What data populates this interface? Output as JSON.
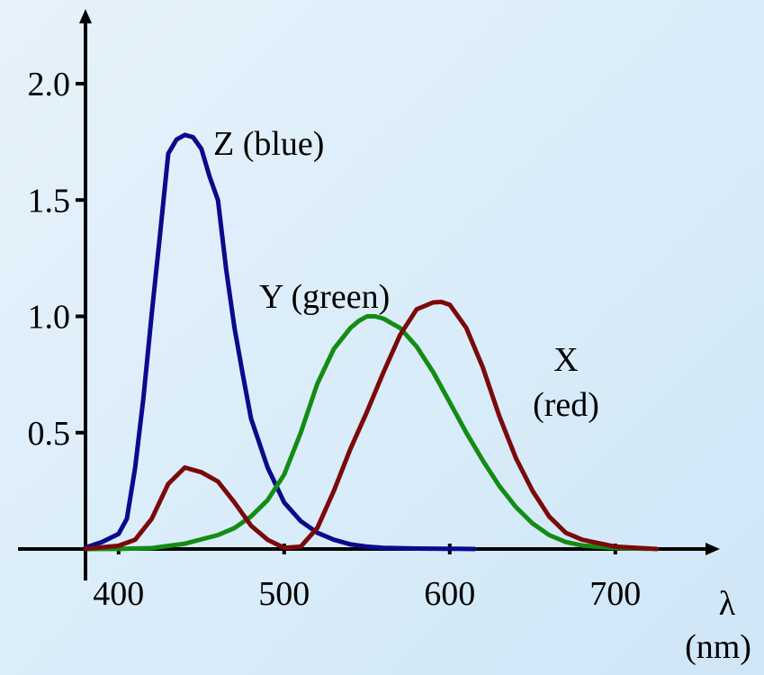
{
  "chart_data": {
    "type": "line",
    "title": "",
    "xlabel": "λ",
    "xunit": "(nm)",
    "ylabel": "",
    "xlim": [
      380,
      730
    ],
    "ylim": [
      0,
      2.0
    ],
    "grid": false,
    "legend": "none",
    "x_ticks": [
      400,
      500,
      600,
      700
    ],
    "y_ticks": [
      0.5,
      1.0,
      1.5,
      2.0
    ],
    "x_tick_labels": [
      "400",
      "500",
      "600",
      "700"
    ],
    "y_tick_labels": [
      "0.5",
      "1.0",
      "1.5",
      "2.0"
    ],
    "series": [
      {
        "label": [
          "Z (blue)"
        ],
        "color": "#0a0a8c",
        "x": [
          380,
          390,
          400,
          405,
          410,
          415,
          420,
          425,
          430,
          435,
          440,
          445,
          450,
          455,
          460,
          465,
          470,
          475,
          480,
          490,
          500,
          510,
          520,
          530,
          540,
          550,
          560,
          580,
          600,
          615
        ],
        "y": [
          0.006,
          0.03,
          0.065,
          0.13,
          0.35,
          0.65,
          1.01,
          1.35,
          1.7,
          1.76,
          1.78,
          1.77,
          1.72,
          1.6,
          1.5,
          1.2,
          0.95,
          0.75,
          0.56,
          0.35,
          0.2,
          0.12,
          0.07,
          0.04,
          0.02,
          0.01,
          0.005,
          0.002,
          0.001,
          0.0
        ]
      },
      {
        "label": [
          "Y (green)"
        ],
        "color": "#148c14",
        "x": [
          380,
          400,
          420,
          440,
          460,
          470,
          480,
          490,
          500,
          510,
          520,
          530,
          540,
          545,
          550,
          555,
          560,
          565,
          570,
          580,
          590,
          600,
          610,
          620,
          630,
          640,
          650,
          660,
          670,
          680,
          700,
          720
        ],
        "y": [
          0.0,
          0.0004,
          0.004,
          0.023,
          0.06,
          0.09,
          0.14,
          0.21,
          0.32,
          0.5,
          0.71,
          0.86,
          0.95,
          0.98,
          1.0,
          1.0,
          0.99,
          0.97,
          0.95,
          0.87,
          0.76,
          0.63,
          0.5,
          0.38,
          0.27,
          0.18,
          0.11,
          0.06,
          0.03,
          0.015,
          0.004,
          0.001
        ]
      },
      {
        "label": [
          "X",
          "(red)"
        ],
        "color": "#7a0a0a",
        "x": [
          380,
          400,
          410,
          420,
          430,
          440,
          450,
          460,
          470,
          480,
          490,
          500,
          510,
          520,
          530,
          540,
          550,
          560,
          570,
          580,
          590,
          595,
          600,
          610,
          620,
          630,
          640,
          650,
          660,
          670,
          680,
          700,
          725
        ],
        "y": [
          0.001,
          0.014,
          0.04,
          0.13,
          0.28,
          0.35,
          0.33,
          0.29,
          0.2,
          0.1,
          0.04,
          0.005,
          0.01,
          0.09,
          0.25,
          0.43,
          0.59,
          0.76,
          0.92,
          1.03,
          1.06,
          1.062,
          1.05,
          0.95,
          0.78,
          0.57,
          0.39,
          0.25,
          0.14,
          0.07,
          0.04,
          0.01,
          0.0
        ]
      }
    ]
  }
}
